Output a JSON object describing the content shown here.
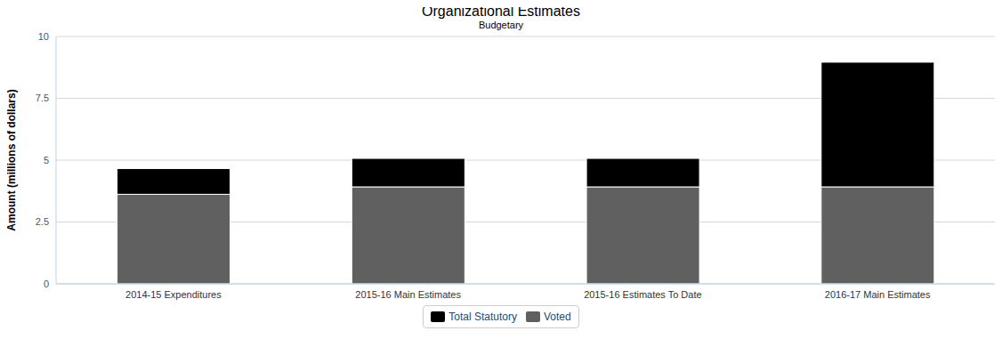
{
  "chart_data": {
    "type": "bar",
    "title": "Organizational Estimates",
    "subtitle": "Budgetary",
    "y_label": "Amount (millions of dollars)",
    "categories": [
      "2014-15 Expenditures",
      "2015-16 Main Estimates",
      "2015-16 Estimates To Date",
      "2016-17 Main Estimates"
    ],
    "series": [
      {
        "name": "Total Statutory",
        "color": "#000000",
        "values": [
          1.04,
          1.15,
          1.15,
          5.04
        ]
      },
      {
        "name": "Voted",
        "color": "#606060",
        "values": [
          3.62,
          3.92,
          3.92,
          3.92
        ]
      }
    ],
    "stacked": true,
    "ylim": [
      0,
      10
    ],
    "yticks": [
      0,
      2.5,
      5,
      7.5,
      10
    ],
    "grid": true,
    "legend": "bottom"
  }
}
